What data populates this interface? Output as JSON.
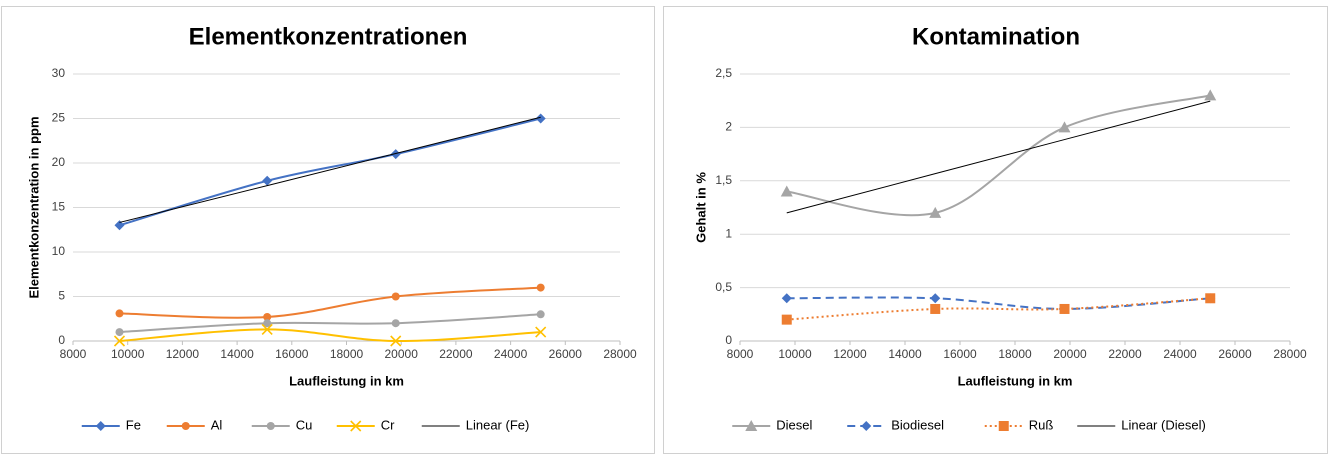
{
  "chart_data": [
    {
      "type": "scatter",
      "title": "Elementkonzentrationen",
      "x_label": "Laufleistung in km",
      "y_label": "Elementkonzentration in ppm",
      "x": [
        9700,
        15100,
        19800,
        25100
      ],
      "xlim": [
        8000,
        28000
      ],
      "xticks": [
        8000,
        10000,
        12000,
        14000,
        16000,
        18000,
        20000,
        22000,
        24000,
        26000,
        28000
      ],
      "ylim": [
        0,
        30
      ],
      "yticks": [
        0,
        5,
        10,
        15,
        20,
        25,
        30
      ],
      "grid": true,
      "series": [
        {
          "name": "Fe",
          "color": "#4472c4",
          "marker": "diamond",
          "smooth": true,
          "values": [
            13,
            18,
            21,
            25
          ]
        },
        {
          "name": "Al",
          "color": "#ed7d31",
          "marker": "circle",
          "smooth": true,
          "values": [
            3.1,
            2.7,
            5,
            6
          ]
        },
        {
          "name": "Cu",
          "color": "#a5a5a5",
          "marker": "circle",
          "smooth": true,
          "values": [
            1,
            2,
            2,
            3
          ]
        },
        {
          "name": "Cr",
          "color": "#ffc000",
          "marker": "x",
          "smooth": true,
          "values": [
            0,
            1.3,
            0,
            1
          ]
        },
        {
          "name": "Linear (Fe)",
          "color": "#000000",
          "marker": "none",
          "smooth": false,
          "values": [
            13.32,
            17.46,
            21.07,
            25.14
          ]
        }
      ]
    },
    {
      "type": "scatter",
      "title": "Kontamination",
      "x_label": "Laufleistung in km",
      "y_label": "Gehalt in %",
      "x": [
        9700,
        15100,
        19800,
        25100
      ],
      "xlim": [
        8000,
        28000
      ],
      "xticks": [
        8000,
        10000,
        12000,
        14000,
        16000,
        18000,
        20000,
        22000,
        24000,
        26000,
        28000
      ],
      "ylim": [
        0,
        2.5
      ],
      "yticks": [
        0,
        {
          "value": 0.5,
          "label": "0,5"
        },
        1,
        {
          "value": 1.5,
          "label": "1,5"
        },
        2,
        {
          "value": 2.5,
          "label": "2,5"
        }
      ],
      "grid": true,
      "series": [
        {
          "name": "Diesel",
          "color": "#a5a5a5",
          "marker": "triangle",
          "smooth": true,
          "values": [
            1.4,
            1.2,
            2,
            2.3
          ]
        },
        {
          "name": "Biodiesel",
          "color": "#4472c4",
          "marker": "diamond",
          "smooth": true,
          "dash": "8,5",
          "values": [
            0.4,
            0.4,
            0.3,
            0.4
          ]
        },
        {
          "name": "Ruß",
          "color": "#ed7d31",
          "marker": "square",
          "smooth": true,
          "dash": "2,3",
          "values": [
            0.2,
            0.3,
            0.3,
            0.4
          ]
        },
        {
          "name": "Linear (Diesel)",
          "color": "#000000",
          "marker": "none",
          "smooth": false,
          "values": [
            1.2,
            1.567,
            1.886,
            2.246
          ]
        }
      ]
    }
  ]
}
